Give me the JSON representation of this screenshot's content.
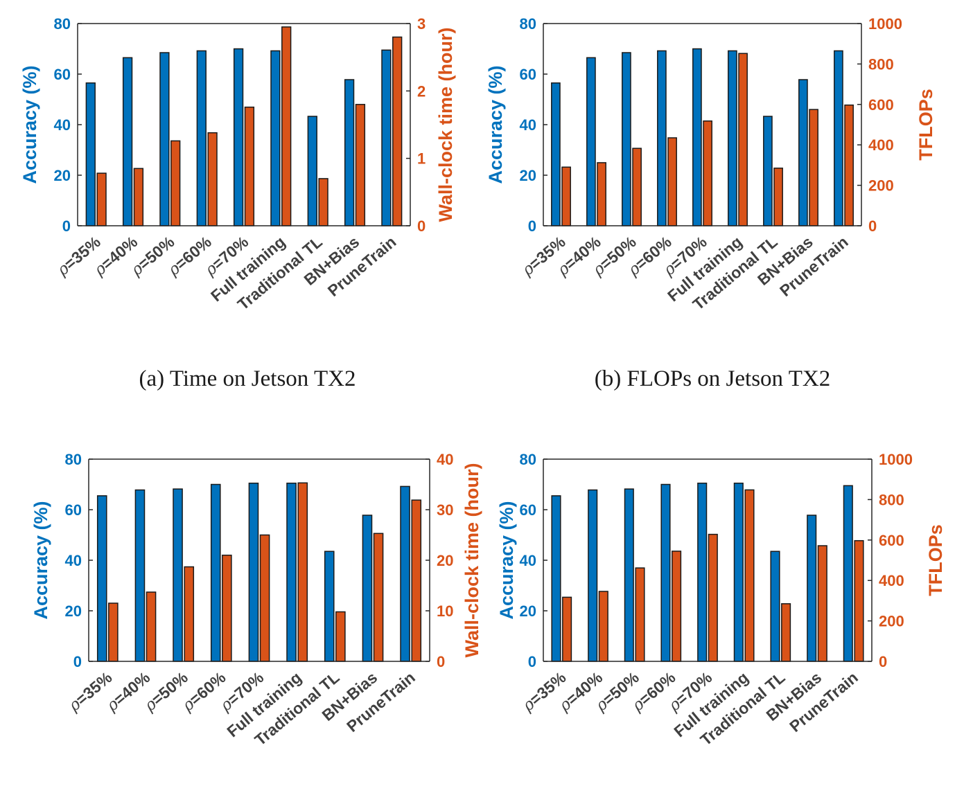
{
  "colors": {
    "accuracy": "#0072BD",
    "secondary": "#D95319",
    "axis": "#262626"
  },
  "chart_data": [
    {
      "type": "bar",
      "caption": "(a)  Time on Jetson TX2",
      "categories": [
        [
          "ρ",
          "=35%"
        ],
        [
          "ρ",
          "=40%"
        ],
        [
          "ρ",
          "=50%"
        ],
        [
          "ρ",
          "=60%"
        ],
        [
          "ρ",
          "=70%"
        ],
        [
          "",
          "Full training"
        ],
        [
          "",
          "Traditional TL"
        ],
        [
          "",
          "BN+Bias"
        ],
        [
          "",
          "PruneTrain"
        ]
      ],
      "ylabel": "Accuracy (%)",
      "ylim": [
        0,
        80
      ],
      "yticks": [
        0,
        20,
        40,
        60,
        80
      ],
      "y2label": "Wall-clock time (hour)",
      "y2lim": [
        0,
        3
      ],
      "y2ticks": [
        0,
        1,
        2,
        3
      ],
      "series": [
        {
          "name": "",
          "axis": "left",
          "values": [
            56.5,
            66.5,
            68.5,
            69.2,
            70.0,
            69.2,
            43.3,
            57.8,
            69.5
          ]
        },
        {
          "name": "",
          "axis": "right",
          "values": [
            0.78,
            0.85,
            1.26,
            1.38,
            1.76,
            2.95,
            0.7,
            1.8,
            2.8
          ]
        }
      ]
    },
    {
      "type": "bar",
      "caption": "(b)  FLOPs on Jetson TX2",
      "categories": [
        [
          "ρ",
          "=35%"
        ],
        [
          "ρ",
          "=40%"
        ],
        [
          "ρ",
          "=50%"
        ],
        [
          "ρ",
          "=60%"
        ],
        [
          "ρ",
          "=70%"
        ],
        [
          "",
          "Full training"
        ],
        [
          "",
          "Traditional TL"
        ],
        [
          "",
          "BN+Bias"
        ],
        [
          "",
          "PruneTrain"
        ]
      ],
      "ylabel": "Accuracy (%)",
      "ylim": [
        0,
        80
      ],
      "yticks": [
        0,
        20,
        40,
        60,
        80
      ],
      "y2label": "TFLOPs",
      "y2lim": [
        0,
        1000
      ],
      "y2ticks": [
        0,
        200,
        400,
        600,
        800,
        1000
      ],
      "series": [
        {
          "name": "",
          "axis": "left",
          "values": [
            56.5,
            66.5,
            68.5,
            69.2,
            70.0,
            69.2,
            43.3,
            57.8,
            69.2
          ]
        },
        {
          "name": "",
          "axis": "right",
          "values": [
            290,
            312,
            383,
            435,
            518,
            852,
            285,
            575,
            597
          ]
        }
      ]
    },
    {
      "type": "bar",
      "caption": "",
      "categories": [
        [
          "ρ",
          "=35%"
        ],
        [
          "ρ",
          "=40%"
        ],
        [
          "ρ",
          "=50%"
        ],
        [
          "ρ",
          "=60%"
        ],
        [
          "ρ",
          "=70%"
        ],
        [
          "",
          "Full training"
        ],
        [
          "",
          "Traditional TL"
        ],
        [
          "",
          "BN+Bias"
        ],
        [
          "",
          "PruneTrain"
        ]
      ],
      "ylabel": "Accuracy (%)",
      "ylim": [
        0,
        80
      ],
      "yticks": [
        0,
        20,
        40,
        60,
        80
      ],
      "y2label": "Wall-clock time (hour)",
      "y2lim": [
        0,
        40
      ],
      "y2ticks": [
        0,
        10,
        20,
        30,
        40
      ],
      "series": [
        {
          "name": "",
          "axis": "left",
          "values": [
            65.5,
            67.8,
            68.2,
            70.0,
            70.5,
            70.5,
            43.5,
            57.8,
            69.2
          ]
        },
        {
          "name": "",
          "axis": "right",
          "values": [
            11.5,
            13.7,
            18.7,
            21.0,
            25.0,
            35.3,
            9.8,
            25.3,
            31.9
          ]
        }
      ]
    },
    {
      "type": "bar",
      "caption": "",
      "categories": [
        [
          "ρ",
          "=35%"
        ],
        [
          "ρ",
          "=40%"
        ],
        [
          "ρ",
          "=50%"
        ],
        [
          "ρ",
          "=60%"
        ],
        [
          "ρ",
          "=70%"
        ],
        [
          "",
          "Full training"
        ],
        [
          "",
          "Traditional TL"
        ],
        [
          "",
          "BN+Bias"
        ],
        [
          "",
          "PruneTrain"
        ]
      ],
      "ylabel": "Accuracy (%)",
      "ylim": [
        0,
        80
      ],
      "yticks": [
        0,
        20,
        40,
        60,
        80
      ],
      "y2label": "TFLOPs",
      "y2lim": [
        0,
        1000
      ],
      "y2ticks": [
        0,
        200,
        400,
        600,
        800,
        1000
      ],
      "series": [
        {
          "name": "",
          "axis": "left",
          "values": [
            65.5,
            67.8,
            68.2,
            70.0,
            70.5,
            70.5,
            43.5,
            57.8,
            69.5
          ]
        },
        {
          "name": "",
          "axis": "right",
          "values": [
            317,
            346,
            462,
            545,
            628,
            848,
            285,
            572,
            597
          ]
        }
      ]
    }
  ]
}
